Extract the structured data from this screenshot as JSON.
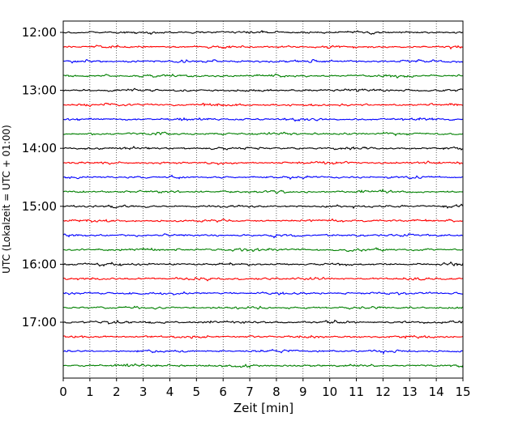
{
  "chart_data": {
    "type": "line",
    "title": "",
    "xlabel": "Zeit  [min]",
    "ylabel": "UTC (Lokalzeit = UTC + 01:00)",
    "xlim": [
      0,
      15
    ],
    "x_ticks": [
      0,
      1,
      2,
      3,
      4,
      5,
      6,
      7,
      8,
      9,
      10,
      11,
      12,
      13,
      14,
      15
    ],
    "x_tick_labels": [
      "0",
      "1",
      "2",
      "3",
      "4",
      "5",
      "6",
      "7",
      "8",
      "9",
      "10",
      "11",
      "12",
      "13",
      "14",
      "15"
    ],
    "y_tick_labels": [
      "12:00",
      "13:00",
      "14:00",
      "15:00",
      "16:00",
      "17:00"
    ],
    "grid": "vertical-dotted",
    "trace_colors": [
      "#000000",
      "#ff0000",
      "#0000ff",
      "#008000"
    ],
    "trace_start_times": [
      "12:00",
      "12:15",
      "12:30",
      "12:45",
      "13:00",
      "13:15",
      "13:30",
      "13:45",
      "14:00",
      "14:15",
      "14:30",
      "14:45",
      "15:00",
      "15:15",
      "15:30",
      "15:45",
      "16:00",
      "16:15",
      "16:30",
      "16:45",
      "17:00",
      "17:15",
      "17:30",
      "17:45"
    ],
    "trace_minutes_per_line": 15
  }
}
